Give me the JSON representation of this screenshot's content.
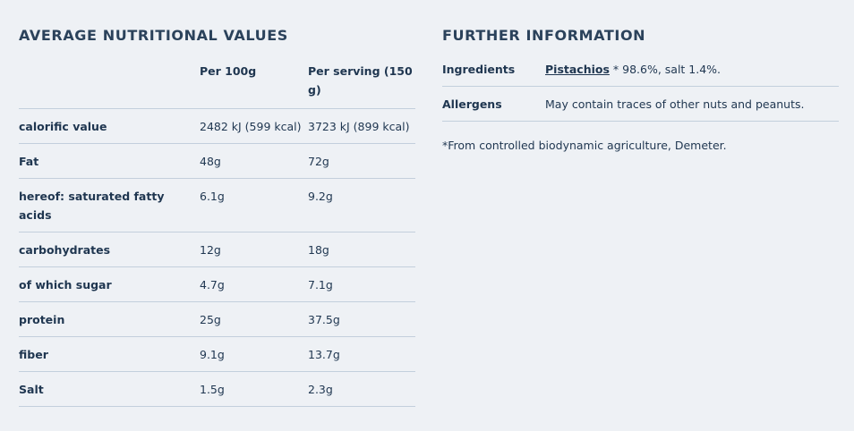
{
  "nutrition": {
    "title": "AVERAGE NUTRITIONAL VALUES",
    "columns": [
      "Per 100g",
      "Per serving (150 g)"
    ],
    "rows": [
      [
        "calorific value",
        "2482 kJ (599 kcal)",
        "3723 kJ (899 kcal)"
      ],
      [
        "Fat",
        "48g",
        "72g"
      ],
      [
        "hereof: saturated fatty acids",
        "6.1g",
        "9.2g"
      ],
      [
        "carbohydrates",
        "12g",
        "18g"
      ],
      [
        "of which sugar",
        "4.7g",
        "7.1g"
      ],
      [
        "protein",
        "25g",
        "37.5g"
      ],
      [
        "fiber",
        "9.1g",
        "13.7g"
      ],
      [
        "Salt",
        "1.5g",
        "2.3g"
      ]
    ]
  },
  "further": {
    "title": "FURTHER INFORMATION",
    "ingredients": {
      "label": "Ingredients",
      "link": "Pistachios",
      "text": "* 98.6%, salt 1.4%."
    },
    "allergens": {
      "label": "Allergens",
      "text": "May contain traces of other nuts and peanuts."
    },
    "footnote": "*From controlled biodynamic agriculture, Demeter."
  }
}
